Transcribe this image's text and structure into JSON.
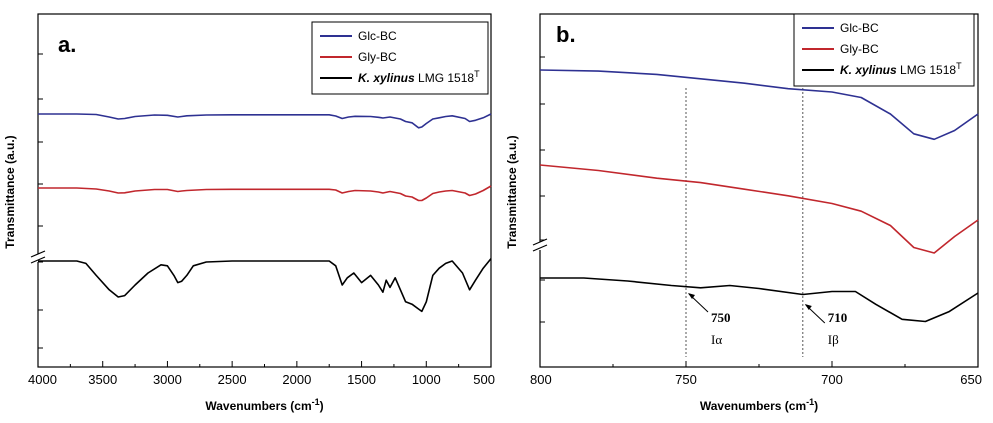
{
  "chart_data": [
    {
      "panel_label": "a.",
      "type": "line",
      "xlabel": "Wavenumbers",
      "xunit": "(cm",
      "xunit_sup": "-1",
      "xunit_end": ")",
      "ylabel": "Transmittance (a.u.)",
      "xlim": [
        4000,
        500
      ],
      "axis_break": true,
      "x_ticks": [
        "4000",
        "3500",
        "3000",
        "2500",
        "2000",
        "1500",
        "1000",
        "500"
      ],
      "legend": {
        "placement": "top-right",
        "entries": [
          {
            "label": "Glc-BC",
            "color": "#2e3192"
          },
          {
            "label": "Gly-BC",
            "color": "#c1272d"
          },
          {
            "label_italic": "K. xylinus",
            "label": " LMG 1518",
            "label_sup": "T",
            "color": "#000000"
          }
        ]
      },
      "series": [
        {
          "name": "Glc-BC",
          "color": "#2e3192",
          "points": [
            [
              4000,
              0.0
            ],
            [
              3700,
              0.0
            ],
            [
              3550,
              0.02
            ],
            [
              3450,
              0.12
            ],
            [
              3380,
              0.2
            ],
            [
              3330,
              0.18
            ],
            [
              3250,
              0.1
            ],
            [
              3100,
              0.04
            ],
            [
              3000,
              0.05
            ],
            [
              2920,
              0.12
            ],
            [
              2890,
              0.1
            ],
            [
              2850,
              0.07
            ],
            [
              2700,
              0.04
            ],
            [
              2500,
              0.03
            ],
            [
              2300,
              0.03
            ],
            [
              2100,
              0.03
            ],
            [
              1900,
              0.03
            ],
            [
              1750,
              0.03
            ],
            [
              1700,
              0.08
            ],
            [
              1650,
              0.18
            ],
            [
              1600,
              0.12
            ],
            [
              1550,
              0.09
            ],
            [
              1430,
              0.1
            ],
            [
              1370,
              0.13
            ],
            [
              1335,
              0.16
            ],
            [
              1280,
              0.12
            ],
            [
              1200,
              0.2
            ],
            [
              1160,
              0.3
            ],
            [
              1110,
              0.35
            ],
            [
              1060,
              0.55
            ],
            [
              1035,
              0.52
            ],
            [
              1000,
              0.38
            ],
            [
              950,
              0.2
            ],
            [
              900,
              0.15
            ],
            [
              850,
              0.1
            ],
            [
              800,
              0.07
            ],
            [
              700,
              0.18
            ],
            [
              665,
              0.3
            ],
            [
              620,
              0.25
            ],
            [
              560,
              0.15
            ],
            [
              500,
              0.0
            ]
          ]
        },
        {
          "name": "Gly-BC",
          "color": "#c1272d",
          "points": [
            [
              4000,
              0.0
            ],
            [
              3700,
              0.0
            ],
            [
              3550,
              0.04
            ],
            [
              3450,
              0.12
            ],
            [
              3380,
              0.2
            ],
            [
              3330,
              0.19
            ],
            [
              3250,
              0.12
            ],
            [
              3100,
              0.06
            ],
            [
              3000,
              0.06
            ],
            [
              2920,
              0.14
            ],
            [
              2890,
              0.12
            ],
            [
              2850,
              0.1
            ],
            [
              2700,
              0.06
            ],
            [
              2500,
              0.05
            ],
            [
              2300,
              0.05
            ],
            [
              2100,
              0.05
            ],
            [
              1900,
              0.05
            ],
            [
              1750,
              0.05
            ],
            [
              1700,
              0.08
            ],
            [
              1650,
              0.2
            ],
            [
              1600,
              0.14
            ],
            [
              1550,
              0.1
            ],
            [
              1430,
              0.12
            ],
            [
              1370,
              0.16
            ],
            [
              1335,
              0.2
            ],
            [
              1280,
              0.14
            ],
            [
              1200,
              0.22
            ],
            [
              1160,
              0.32
            ],
            [
              1110,
              0.36
            ],
            [
              1060,
              0.5
            ],
            [
              1035,
              0.5
            ],
            [
              1000,
              0.4
            ],
            [
              950,
              0.22
            ],
            [
              900,
              0.16
            ],
            [
              850,
              0.12
            ],
            [
              800,
              0.1
            ],
            [
              700,
              0.2
            ],
            [
              665,
              0.3
            ],
            [
              620,
              0.24
            ],
            [
              560,
              0.1
            ],
            [
              500,
              -0.08
            ]
          ]
        },
        {
          "name": "K. xylinus LMG 1518T",
          "color": "#000000",
          "points": [
            [
              4000,
              0.0
            ],
            [
              3700,
              0.0
            ],
            [
              3630,
              0.05
            ],
            [
              3550,
              0.3
            ],
            [
              3450,
              0.6
            ],
            [
              3380,
              0.75
            ],
            [
              3330,
              0.72
            ],
            [
              3250,
              0.5
            ],
            [
              3150,
              0.25
            ],
            [
              3050,
              0.08
            ],
            [
              3000,
              0.1
            ],
            [
              2950,
              0.3
            ],
            [
              2920,
              0.45
            ],
            [
              2890,
              0.42
            ],
            [
              2850,
              0.3
            ],
            [
              2800,
              0.1
            ],
            [
              2700,
              0.02
            ],
            [
              2500,
              0.0
            ],
            [
              2300,
              0.0
            ],
            [
              2100,
              0.0
            ],
            [
              1900,
              0.0
            ],
            [
              1750,
              0.0
            ],
            [
              1700,
              0.1
            ],
            [
              1650,
              0.5
            ],
            [
              1610,
              0.35
            ],
            [
              1560,
              0.25
            ],
            [
              1500,
              0.45
            ],
            [
              1430,
              0.3
            ],
            [
              1370,
              0.5
            ],
            [
              1335,
              0.65
            ],
            [
              1310,
              0.4
            ],
            [
              1280,
              0.55
            ],
            [
              1240,
              0.35
            ],
            [
              1200,
              0.6
            ],
            [
              1160,
              0.85
            ],
            [
              1110,
              0.9
            ],
            [
              1060,
              1.0
            ],
            [
              1035,
              1.05
            ],
            [
              1000,
              0.85
            ],
            [
              950,
              0.3
            ],
            [
              900,
              0.15
            ],
            [
              850,
              0.05
            ],
            [
              800,
              0.0
            ],
            [
              720,
              0.25
            ],
            [
              665,
              0.6
            ],
            [
              620,
              0.4
            ],
            [
              560,
              0.15
            ],
            [
              500,
              -0.05
            ]
          ]
        }
      ]
    },
    {
      "panel_label": "b.",
      "type": "line",
      "xlabel": "Wavenumbers",
      "xunit": "(cm",
      "xunit_sup": "-1",
      "xunit_end": ")",
      "ylabel": "Transmittance (a.u.)",
      "xlim": [
        800,
        650
      ],
      "axis_break": true,
      "x_ticks": [
        "800",
        "750",
        "700",
        "650"
      ],
      "legend": {
        "placement": "top-right",
        "entries": [
          {
            "label": "Glc-BC",
            "color": "#2e3192"
          },
          {
            "label": "Gly-BC",
            "color": "#c1272d"
          },
          {
            "label_italic": "K. xylinus",
            "label": " LMG 1518",
            "label_sup": "T",
            "color": "#000000"
          }
        ]
      },
      "annotations": [
        {
          "x": 750,
          "label": "750",
          "sublabel": "Iα"
        },
        {
          "x": 710,
          "label": "710",
          "sublabel": "Iβ"
        }
      ],
      "series": [
        {
          "name": "Glc-BC",
          "color": "#2e3192",
          "points": [
            [
              800,
              0.0
            ],
            [
              780,
              0.01
            ],
            [
              760,
              0.04
            ],
            [
              745,
              0.08
            ],
            [
              730,
              0.12
            ],
            [
              715,
              0.17
            ],
            [
              700,
              0.2
            ],
            [
              690,
              0.25
            ],
            [
              680,
              0.4
            ],
            [
              672,
              0.58
            ],
            [
              665,
              0.63
            ],
            [
              658,
              0.55
            ],
            [
              650,
              0.4
            ]
          ]
        },
        {
          "name": "Gly-BC",
          "color": "#c1272d",
          "points": [
            [
              800,
              0.0
            ],
            [
              780,
              0.05
            ],
            [
              760,
              0.12
            ],
            [
              745,
              0.16
            ],
            [
              730,
              0.22
            ],
            [
              715,
              0.28
            ],
            [
              700,
              0.35
            ],
            [
              690,
              0.42
            ],
            [
              680,
              0.55
            ],
            [
              672,
              0.75
            ],
            [
              665,
              0.8
            ],
            [
              658,
              0.65
            ],
            [
              650,
              0.5
            ]
          ]
        },
        {
          "name": "K. xylinus LMG 1518T",
          "color": "#000000",
          "points": [
            [
              800,
              0.0
            ],
            [
              785,
              0.0
            ],
            [
              770,
              0.04
            ],
            [
              755,
              0.1
            ],
            [
              745,
              0.13
            ],
            [
              735,
              0.1
            ],
            [
              725,
              0.14
            ],
            [
              710,
              0.22
            ],
            [
              700,
              0.18
            ],
            [
              692,
              0.18
            ],
            [
              685,
              0.35
            ],
            [
              676,
              0.55
            ],
            [
              668,
              0.58
            ],
            [
              660,
              0.45
            ],
            [
              650,
              0.2
            ]
          ]
        }
      ]
    }
  ]
}
